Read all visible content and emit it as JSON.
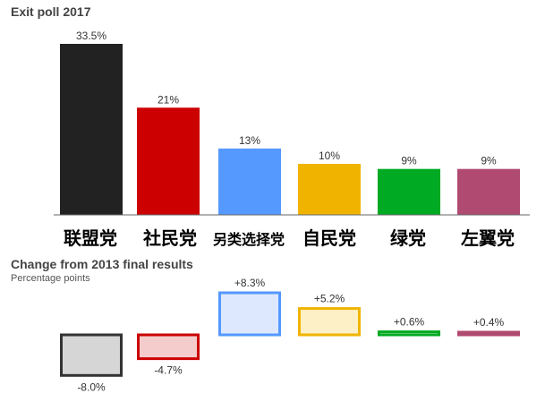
{
  "chart_data": [
    {
      "type": "bar",
      "title": "Exit poll 2017",
      "categories": [
        "联盟党",
        "社民党",
        "另类选择党",
        "自民党",
        "绿党",
        "左翼党"
      ],
      "values": [
        33.5,
        21,
        13,
        10,
        9,
        9
      ],
      "value_labels": [
        "33.5%",
        "21%",
        "13%",
        "10%",
        "9%",
        "9%"
      ],
      "colors": [
        "#222222",
        "#cc0000",
        "#5599ff",
        "#f0b400",
        "#00aa22",
        "#b04a70"
      ],
      "ylim": [
        0,
        35
      ],
      "grid": false
    },
    {
      "type": "bar",
      "title": "Change from 2013 final results",
      "subtitle": "Percentage points",
      "categories": [
        "联盟党",
        "社民党",
        "另类选择党",
        "自民党",
        "绿党",
        "左翼党"
      ],
      "values": [
        -8.0,
        -4.7,
        8.3,
        5.2,
        0.6,
        0.4
      ],
      "value_labels": [
        "-8.0%",
        "-4.7%",
        "+8.3%",
        "+5.2%",
        "+0.6%",
        "+0.4%"
      ],
      "stroke_colors": [
        "#333333",
        "#cc0000",
        "#5599ff",
        "#f0b400",
        "#00aa22",
        "#b04a70"
      ],
      "fill_colors": [
        "#d6d6d6",
        "#f4cccc",
        "#dde8ff",
        "#fdf0c6",
        "#d8f2dc",
        "#f0d8e2"
      ],
      "ylim": [
        -10,
        10
      ],
      "grid": false
    }
  ]
}
